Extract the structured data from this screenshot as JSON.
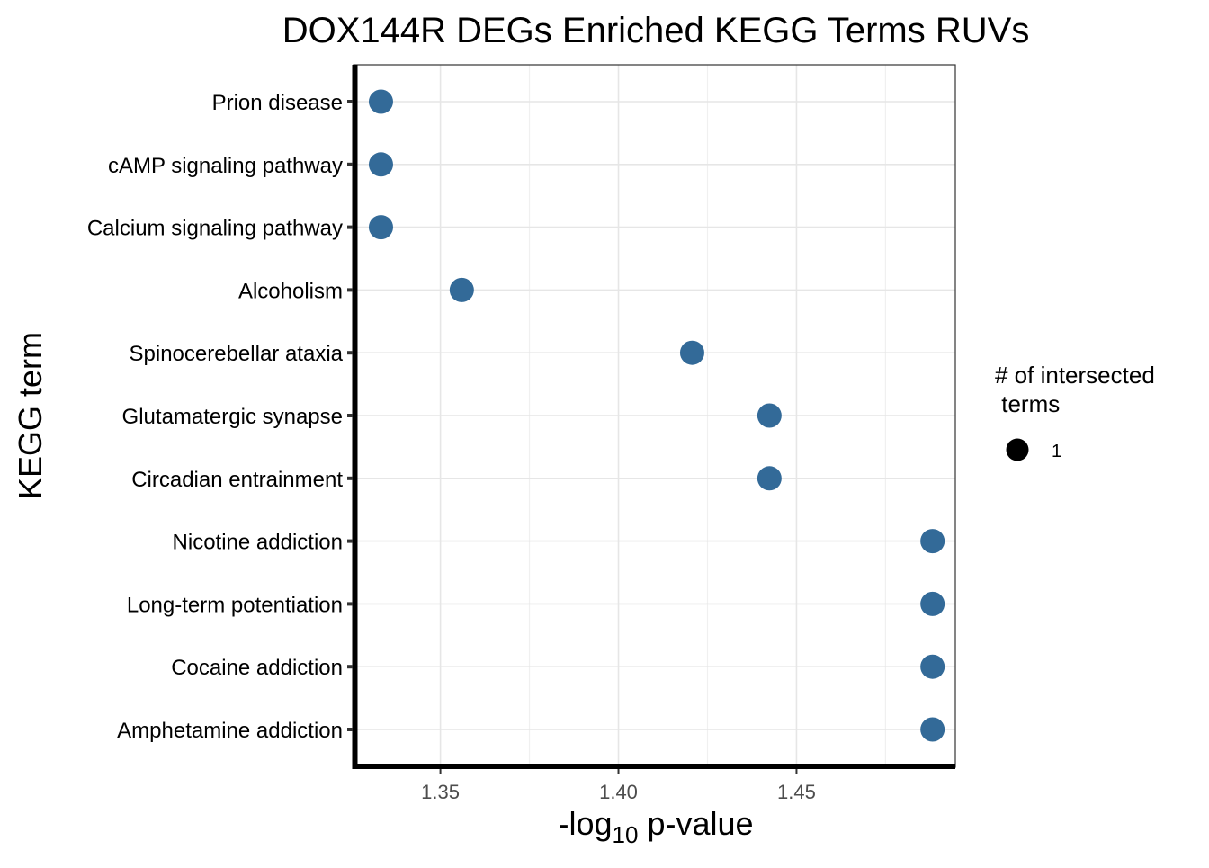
{
  "chart_data": {
    "type": "scatter",
    "title": "DOX144R DEGs Enriched KEGG Terms RUVs",
    "xlabel": {
      "prefix": "-log",
      "subscript": "10",
      "suffix": " p-value"
    },
    "ylabel": "KEGG term",
    "xlim": [
      1.3256,
      1.4946
    ],
    "x_ticks": [
      {
        "value": 1.35,
        "label": "1.35"
      },
      {
        "value": 1.4,
        "label": "1.40"
      },
      {
        "value": 1.45,
        "label": "1.45"
      }
    ],
    "x_minor": [
      1.375,
      1.425,
      1.475
    ],
    "grid": true,
    "point_color": "#336a98",
    "categories": [
      "Prion disease",
      "cAMP signaling pathway",
      "Calcium signaling pathway",
      "Alcoholism",
      "Spinocerebellar ataxia",
      "Glutamatergic synapse",
      "Circadian entrainment",
      "Nicotine addiction",
      "Long-term potentiation",
      "Cocaine addiction",
      "Amphetamine addiction"
    ],
    "x": [
      1.3333,
      1.3333,
      1.3333,
      1.356,
      1.4207,
      1.4424,
      1.4424,
      1.4882,
      1.4882,
      1.4882,
      1.4882
    ],
    "size": [
      1,
      1,
      1,
      1,
      1,
      1,
      1,
      1,
      1,
      1,
      1
    ],
    "legend": {
      "title_line1": "# of intersected",
      "title_line2": " terms",
      "entries": [
        {
          "label": "1",
          "value": 1
        }
      ],
      "position": "right"
    }
  }
}
